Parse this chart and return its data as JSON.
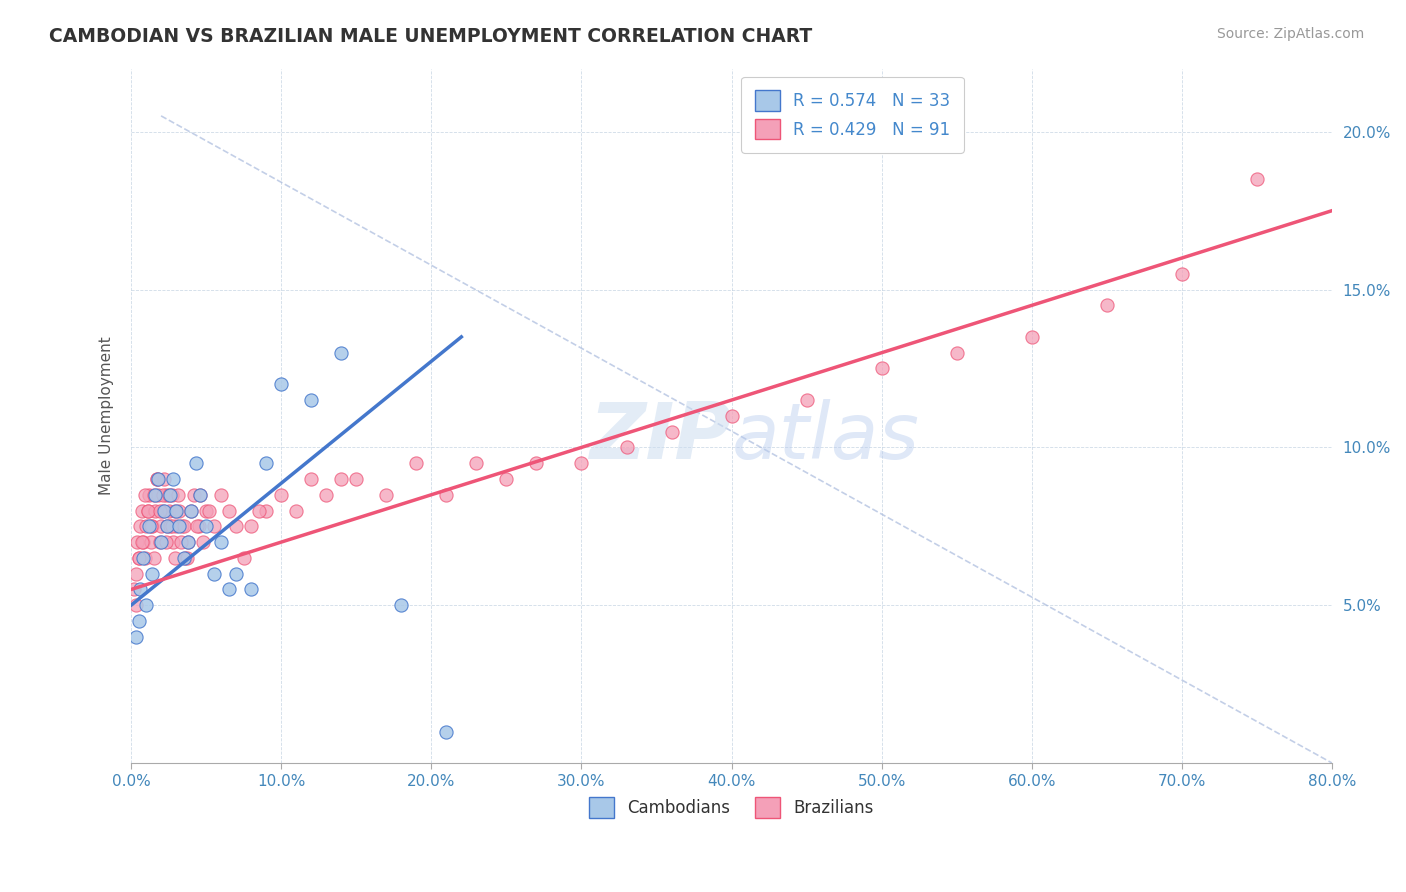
{
  "title": "CAMBODIAN VS BRAZILIAN MALE UNEMPLOYMENT CORRELATION CHART",
  "source": "Source: ZipAtlas.com",
  "xlabel_ticks": [
    "0.0%",
    "10.0%",
    "20.0%",
    "30.0%",
    "40.0%",
    "50.0%",
    "60.0%",
    "70.0%",
    "80.0%"
  ],
  "xlabel_values": [
    0,
    10,
    20,
    30,
    40,
    50,
    60,
    70,
    80
  ],
  "ylabel": "Male Unemployment",
  "ylabel_ticks": [
    "5.0%",
    "10.0%",
    "15.0%",
    "20.0%"
  ],
  "ylabel_values": [
    5,
    10,
    15,
    20
  ],
  "xmin": 0,
  "xmax": 80,
  "ymin": 0,
  "ymax": 22,
  "legend_entry1": "R = 0.574   N = 33",
  "legend_entry2": "R = 0.429   N = 91",
  "color_cambodian": "#a8c8e8",
  "color_brazilian": "#f4a0b8",
  "color_trendline_cambodian": "#4477cc",
  "color_trendline_brazilian": "#ee5577",
  "watermark_zip": "ZIP",
  "watermark_atlas": "atlas",
  "cambodian_x": [
    0.3,
    0.5,
    0.6,
    0.8,
    1.0,
    1.2,
    1.4,
    1.6,
    1.8,
    2.0,
    2.2,
    2.4,
    2.6,
    2.8,
    3.0,
    3.2,
    3.5,
    3.8,
    4.0,
    4.3,
    4.6,
    5.0,
    5.5,
    6.0,
    6.5,
    7.0,
    8.0,
    9.0,
    10.0,
    12.0,
    14.0,
    18.0,
    21.0
  ],
  "cambodian_y": [
    4.0,
    4.5,
    5.5,
    6.5,
    5.0,
    7.5,
    6.0,
    8.5,
    9.0,
    7.0,
    8.0,
    7.5,
    8.5,
    9.0,
    8.0,
    7.5,
    6.5,
    7.0,
    8.0,
    9.5,
    8.5,
    7.5,
    6.0,
    7.0,
    5.5,
    6.0,
    5.5,
    9.5,
    12.0,
    11.5,
    13.0,
    5.0,
    1.0
  ],
  "brazilian_x": [
    0.2,
    0.3,
    0.4,
    0.5,
    0.6,
    0.7,
    0.8,
    0.9,
    1.0,
    1.1,
    1.2,
    1.3,
    1.4,
    1.5,
    1.6,
    1.7,
    1.8,
    1.9,
    2.0,
    2.1,
    2.2,
    2.3,
    2.4,
    2.5,
    2.6,
    2.7,
    2.8,
    2.9,
    3.0,
    3.2,
    3.4,
    3.6,
    3.8,
    4.0,
    4.2,
    4.5,
    4.8,
    5.0,
    5.5,
    6.0,
    6.5,
    7.0,
    7.5,
    8.0,
    9.0,
    10.0,
    11.0,
    12.0,
    13.0,
    14.0,
    15.0,
    17.0,
    19.0,
    21.0,
    23.0,
    25.0,
    27.0,
    30.0,
    33.0,
    36.0,
    40.0,
    45.0,
    50.0,
    55.0,
    60.0,
    65.0,
    70.0,
    75.0,
    0.35,
    0.55,
    0.75,
    0.95,
    1.15,
    1.35,
    1.55,
    1.75,
    1.95,
    2.15,
    2.35,
    2.55,
    2.75,
    2.95,
    3.15,
    3.35,
    3.55,
    3.75,
    4.4,
    4.6,
    5.2,
    8.5
  ],
  "brazilian_y": [
    5.5,
    6.0,
    7.0,
    6.5,
    7.5,
    8.0,
    7.0,
    6.5,
    7.5,
    8.0,
    8.5,
    7.0,
    7.5,
    6.5,
    8.0,
    9.0,
    8.5,
    7.0,
    7.5,
    8.0,
    9.0,
    8.5,
    7.5,
    8.0,
    7.5,
    8.5,
    7.0,
    6.5,
    7.5,
    8.0,
    7.5,
    6.5,
    7.0,
    8.0,
    8.5,
    7.5,
    7.0,
    8.0,
    7.5,
    8.5,
    8.0,
    7.5,
    6.5,
    7.5,
    8.0,
    8.5,
    8.0,
    9.0,
    8.5,
    9.0,
    9.0,
    8.5,
    9.5,
    8.5,
    9.5,
    9.0,
    9.5,
    9.5,
    10.0,
    10.5,
    11.0,
    11.5,
    12.5,
    13.0,
    13.5,
    14.5,
    15.5,
    18.5,
    5.0,
    6.5,
    7.0,
    8.5,
    8.0,
    7.5,
    8.5,
    9.0,
    8.0,
    8.5,
    7.0,
    8.5,
    7.5,
    8.0,
    8.5,
    7.0,
    7.5,
    6.5,
    7.5,
    8.5,
    8.0,
    8.0
  ],
  "trendline_cambodian_x0": 0.0,
  "trendline_cambodian_x1": 22.0,
  "trendline_cambodian_y0": 5.0,
  "trendline_cambodian_y1": 13.5,
  "trendline_brazilian_x0": 0.0,
  "trendline_brazilian_x1": 80.0,
  "trendline_brazilian_y0": 5.5,
  "trendline_brazilian_y1": 17.5,
  "refline_x0": 2.0,
  "refline_y0": 20.5,
  "refline_x1": 80.0,
  "refline_y1": 0.0
}
